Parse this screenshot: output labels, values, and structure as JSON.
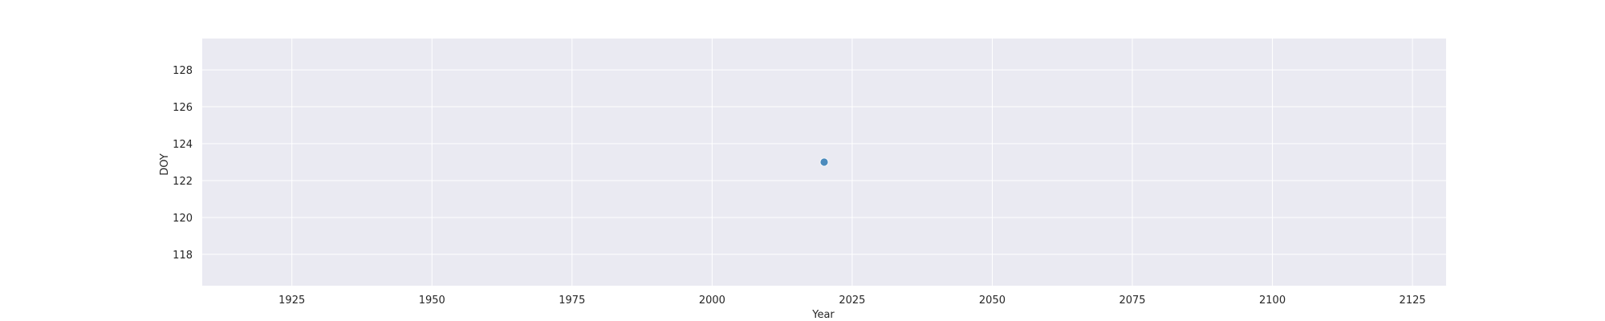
{
  "chart_data": {
    "type": "scatter",
    "xlabel": "Year",
    "ylabel": "DOY",
    "xlim": [
      1909,
      2131
    ],
    "ylim": [
      116.3,
      129.7
    ],
    "xticks": [
      1925,
      1950,
      1975,
      2000,
      2025,
      2050,
      2075,
      2100,
      2125
    ],
    "yticks": [
      118,
      120,
      122,
      124,
      126,
      128
    ],
    "grid": true,
    "points": [
      {
        "x": 2020,
        "y": 123
      }
    ],
    "colors": {
      "background": "#eaeaf2",
      "grid": "#ffffff",
      "marker": "#4c8bbd",
      "text": "#262626"
    }
  }
}
